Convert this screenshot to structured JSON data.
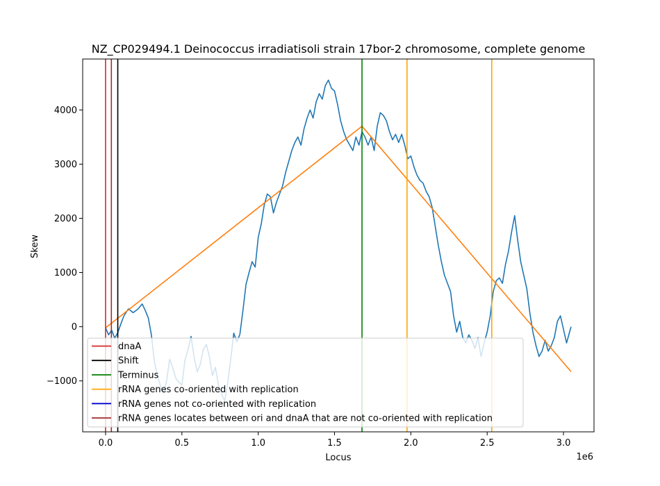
{
  "chart_data": {
    "type": "line",
    "title": "NZ_CP029494.1 Deinococcus irradiatisoli strain 17bor-2 chromosome, complete genome",
    "xlabel": "Locus",
    "ylabel": "Skew",
    "x_offset_label": "1e6",
    "xlim": [
      -150000,
      3200000
    ],
    "ylim": [
      -1940,
      4940
    ],
    "x_ticks": [
      0,
      500000,
      1000000,
      1500000,
      2000000,
      2500000,
      3000000
    ],
    "x_tick_labels": [
      "0.0",
      "0.5",
      "1.0",
      "1.5",
      "2.0",
      "2.5",
      "3.0"
    ],
    "y_ticks": [
      -1000,
      0,
      1000,
      2000,
      3000,
      4000
    ],
    "y_tick_labels": [
      "−1000",
      "0",
      "1000",
      "2000",
      "3000",
      "4000"
    ],
    "grid": false,
    "legend_position": "lower-left",
    "series": [
      {
        "name": "",
        "color": "#1f77b4",
        "x": [
          0,
          20000,
          40000,
          60000,
          80000,
          100000,
          120000,
          150000,
          180000,
          210000,
          240000,
          260000,
          280000,
          300000,
          320000,
          340000,
          360000,
          380000,
          400000,
          420000,
          440000,
          460000,
          480000,
          500000,
          520000,
          540000,
          560000,
          580000,
          600000,
          620000,
          640000,
          660000,
          680000,
          700000,
          720000,
          740000,
          760000,
          780000,
          800000,
          820000,
          840000,
          860000,
          880000,
          900000,
          920000,
          940000,
          960000,
          980000,
          1000000,
          1020000,
          1040000,
          1060000,
          1080000,
          1100000,
          1120000,
          1140000,
          1160000,
          1180000,
          1200000,
          1220000,
          1240000,
          1260000,
          1280000,
          1300000,
          1320000,
          1340000,
          1360000,
          1380000,
          1400000,
          1420000,
          1440000,
          1460000,
          1480000,
          1500000,
          1520000,
          1540000,
          1560000,
          1580000,
          1600000,
          1620000,
          1640000,
          1660000,
          1680000,
          1700000,
          1720000,
          1740000,
          1760000,
          1780000,
          1800000,
          1820000,
          1840000,
          1860000,
          1880000,
          1900000,
          1920000,
          1940000,
          1960000,
          1980000,
          2000000,
          2020000,
          2040000,
          2060000,
          2080000,
          2100000,
          2120000,
          2140000,
          2160000,
          2180000,
          2200000,
          2220000,
          2240000,
          2260000,
          2280000,
          2300000,
          2320000,
          2340000,
          2360000,
          2380000,
          2400000,
          2420000,
          2440000,
          2460000,
          2480000,
          2500000,
          2520000,
          2540000,
          2560000,
          2580000,
          2600000,
          2620000,
          2640000,
          2660000,
          2680000,
          2700000,
          2720000,
          2740000,
          2760000,
          2780000,
          2800000,
          2820000,
          2840000,
          2860000,
          2880000,
          2900000,
          2920000,
          2940000,
          2960000,
          2980000,
          3000000,
          3020000,
          3040000,
          3050000
        ],
        "y": [
          -20,
          -150,
          -60,
          -210,
          -110,
          50,
          200,
          330,
          260,
          320,
          420,
          300,
          160,
          -150,
          -650,
          -900,
          -1100,
          -1230,
          -1000,
          -600,
          -750,
          -950,
          -1020,
          -1080,
          -620,
          -420,
          -180,
          -560,
          -830,
          -700,
          -420,
          -330,
          -550,
          -900,
          -750,
          -1080,
          -1230,
          -1380,
          -1050,
          -600,
          -120,
          -280,
          -140,
          300,
          780,
          1000,
          1200,
          1100,
          1650,
          1900,
          2250,
          2450,
          2400,
          2100,
          2300,
          2450,
          2600,
          2850,
          3050,
          3250,
          3400,
          3500,
          3350,
          3650,
          3850,
          4000,
          3850,
          4150,
          4300,
          4200,
          4450,
          4550,
          4400,
          4350,
          4100,
          3800,
          3600,
          3450,
          3350,
          3250,
          3500,
          3350,
          3600,
          3500,
          3350,
          3500,
          3250,
          3700,
          3950,
          3900,
          3800,
          3600,
          3450,
          3550,
          3400,
          3550,
          3350,
          3100,
          3150,
          2950,
          2800,
          2700,
          2650,
          2500,
          2400,
          2200,
          1850,
          1500,
          1200,
          950,
          800,
          650,
          200,
          -100,
          100,
          -200,
          -300,
          -150,
          -250,
          -400,
          -200,
          -550,
          -300,
          -100,
          200,
          650,
          850,
          900,
          800,
          1150,
          1400,
          1750,
          2050,
          1600,
          1200,
          950,
          700,
          250,
          -100,
          -350,
          -550,
          -450,
          -250,
          -450,
          -350,
          -200,
          100,
          200,
          -50,
          -300,
          -100,
          0
        ]
      },
      {
        "name": "",
        "color": "#ff7f0e",
        "x": [
          0,
          1680000,
          3050000
        ],
        "y": [
          -20,
          3700,
          -830
        ]
      }
    ],
    "vlines": [
      {
        "name": "dnaA",
        "x": 0,
        "color": "#d62728"
      },
      {
        "name": "rRNA genes locates between ori and dnaA that are not co-oriented with replication",
        "x": 38000,
        "color": "#a52a2a"
      },
      {
        "name": "Shift",
        "x": 80000,
        "color": "#000000"
      },
      {
        "name": "Terminus",
        "x": 1680000,
        "color": "#008000"
      },
      {
        "name": "rRNA genes co-oriented with replication",
        "x": 1975000,
        "color": "#ffa500"
      },
      {
        "name": "rRNA genes co-oriented with replication",
        "x": 2530000,
        "color": "#ffa500"
      }
    ],
    "legend": [
      {
        "label": "dnaA",
        "color": "#d62728"
      },
      {
        "label": "Shift",
        "color": "#000000"
      },
      {
        "label": "Terminus",
        "color": "#008000"
      },
      {
        "label": "rRNA genes co-oriented with replication",
        "color": "#ffa500"
      },
      {
        "label": "rRNA genes not co-oriented with replication",
        "color": "#0000cd"
      },
      {
        "label": "rRNA genes locates between ori and dnaA that are not co-oriented with replication",
        "color": "#a52a2a"
      }
    ]
  }
}
